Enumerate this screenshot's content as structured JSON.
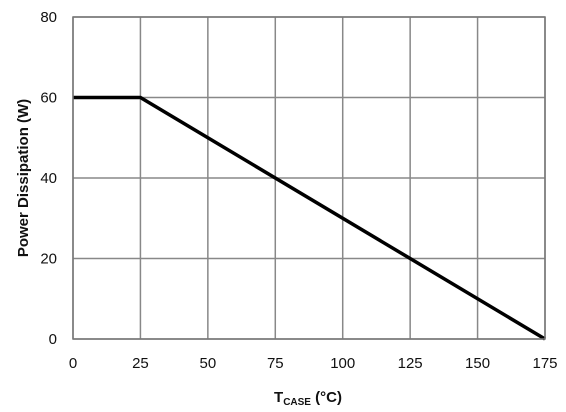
{
  "chart_data": {
    "type": "line",
    "xlabel": {
      "main": "T",
      "sub": "CASE",
      "unit": " (°C)"
    },
    "ylabel": "Power Dissipation (W)",
    "xlim": [
      0,
      175
    ],
    "ylim": [
      0,
      80
    ],
    "x_ticks": [
      0,
      25,
      50,
      75,
      100,
      125,
      150,
      175
    ],
    "y_ticks": [
      0,
      20,
      40,
      60,
      80
    ],
    "grid": true,
    "series": [
      {
        "x": [
          0,
          25,
          175
        ],
        "y": [
          60,
          60,
          0
        ],
        "color": "#000000"
      }
    ]
  }
}
